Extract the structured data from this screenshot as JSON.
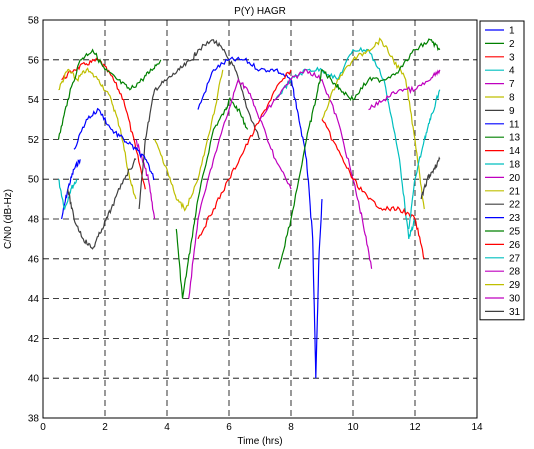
{
  "chart_data": {
    "type": "line",
    "title": "P(Y) HAGR",
    "xlabel": "Time (hrs)",
    "ylabel": "C/N0 (dB-Hz)",
    "xlim": [
      0,
      14
    ],
    "ylim": [
      38,
      58
    ],
    "xticks": [
      0,
      2,
      4,
      6,
      8,
      10,
      12,
      14
    ],
    "yticks": [
      38,
      40,
      42,
      44,
      46,
      48,
      50,
      52,
      54,
      56,
      58
    ],
    "grid": true,
    "legend_position": "outside-right",
    "series": [
      {
        "name": "1",
        "color": "#0000ff",
        "x": [
          0.6,
          0.8,
          1.0,
          1.2
        ],
        "y": [
          48.0,
          49.5,
          50.5,
          51.0
        ]
      },
      {
        "name": "2",
        "color": "#008000",
        "x": [
          4.3,
          4.5,
          4.8,
          5.0,
          5.5,
          5.9,
          6.0,
          6.3,
          6.6
        ],
        "y": [
          47.5,
          44.0,
          47.0,
          49.0,
          52.5,
          53.5,
          54.0,
          53.5,
          52.5
        ]
      },
      {
        "name": "3",
        "color": "#ff0000",
        "x": [
          0.6,
          1.0,
          1.4,
          1.8,
          2.2,
          2.6,
          3.0,
          3.3
        ],
        "y": [
          55.0,
          55.5,
          55.8,
          56.0,
          55.2,
          54.0,
          51.5,
          49.5
        ]
      },
      {
        "name": "4",
        "color": "#00bfbf",
        "x": [
          0.5,
          0.7,
          0.9,
          1.1
        ],
        "y": [
          50.0,
          48.5,
          49.5,
          50.0
        ]
      },
      {
        "name": "7",
        "color": "#bf00bf",
        "x": [
          3.0,
          3.2,
          3.4,
          3.6
        ],
        "y": [
          52.0,
          51.0,
          50.0,
          48.0
        ]
      },
      {
        "name": "8",
        "color": "#bfbf00",
        "x": [
          0.5,
          0.8,
          1.1,
          1.4,
          1.8,
          2.2,
          2.5,
          2.8,
          3.0
        ],
        "y": [
          54.5,
          55.5,
          55.0,
          55.5,
          55.0,
          54.0,
          52.5,
          50.0,
          49.0
        ]
      },
      {
        "name": "9",
        "color": "#404040",
        "x": [
          3.1,
          3.3,
          3.6,
          4.0,
          4.4,
          4.8,
          5.0,
          5.5,
          5.8,
          6.2,
          6.6,
          7.0
        ],
        "y": [
          48.5,
          52.0,
          54.5,
          55.0,
          55.5,
          56.0,
          56.5,
          57.0,
          56.5,
          55.5,
          53.5,
          52.0
        ]
      },
      {
        "name": "11",
        "color": "#0000ff",
        "x": [
          5.0,
          5.5,
          6.0,
          6.5,
          7.0,
          7.5,
          8.0,
          8.2,
          8.5,
          8.7,
          8.8,
          8.9,
          9.0
        ],
        "y": [
          53.5,
          55.5,
          56.0,
          56.0,
          55.5,
          55.5,
          55.0,
          53.5,
          51.0,
          47.0,
          40.0,
          46.0,
          49.0
        ]
      },
      {
        "name": "13",
        "color": "#008000",
        "x": [
          0.5,
          0.8,
          1.2,
          1.6,
          2.0,
          2.4,
          2.8,
          3.2,
          3.5,
          3.8
        ],
        "y": [
          52.0,
          54.0,
          56.0,
          56.5,
          55.5,
          55.0,
          54.5,
          55.0,
          55.5,
          56.0
        ]
      },
      {
        "name": "14",
        "color": "#ff0000",
        "x": [
          5.0,
          5.5,
          6.0,
          6.5,
          7.0,
          7.5,
          8.0
        ],
        "y": [
          47.0,
          48.5,
          50.0,
          51.5,
          53.0,
          54.5,
          55.5
        ]
      },
      {
        "name": "18",
        "color": "#00bfbf",
        "x": [
          7.5,
          8.0,
          8.5,
          9.0,
          9.5,
          10.0,
          10.5,
          11.0,
          11.5,
          11.8,
          12.0
        ],
        "y": [
          54.0,
          55.0,
          55.5,
          55.5,
          55.0,
          56.5,
          56.5,
          55.0,
          51.0,
          47.0,
          48.0
        ]
      },
      {
        "name": "20",
        "color": "#bf00bf",
        "x": [
          7.0,
          7.5,
          8.0,
          8.5,
          9.0,
          9.5,
          10.0,
          10.3,
          10.6
        ],
        "y": [
          53.0,
          54.0,
          55.0,
          55.5,
          55.0,
          53.0,
          50.0,
          48.0,
          45.5
        ]
      },
      {
        "name": "21",
        "color": "#bfbf00",
        "x": [
          9.0,
          9.5,
          10.0,
          10.5,
          10.9,
          11.3,
          11.7,
          12.0,
          12.3
        ],
        "y": [
          53.0,
          55.0,
          56.0,
          56.5,
          57.0,
          56.0,
          55.0,
          52.0,
          48.5
        ]
      },
      {
        "name": "22",
        "color": "#404040",
        "x": [
          0.8,
          1.0,
          1.3,
          1.6,
          1.9,
          2.2,
          2.6,
          3.0
        ],
        "y": [
          49.5,
          48.0,
          47.0,
          46.5,
          47.5,
          48.5,
          50.0,
          51.0
        ]
      },
      {
        "name": "23",
        "color": "#0000ff",
        "x": [
          1.0,
          1.4,
          1.8,
          2.2,
          2.6,
          3.0,
          3.3,
          3.6
        ],
        "y": [
          51.5,
          53.0,
          53.5,
          52.5,
          52.0,
          51.5,
          51.0,
          50.0
        ]
      },
      {
        "name": "25",
        "color": "#008000",
        "x": [
          7.6,
          8.0,
          8.5,
          8.8,
          9.0,
          9.3,
          9.6,
          10.0,
          10.5,
          11.0,
          11.5,
          12.0,
          12.5,
          12.8
        ],
        "y": [
          45.5,
          48.0,
          52.0,
          54.0,
          55.5,
          55.0,
          54.5,
          54.0,
          55.0,
          55.0,
          55.5,
          56.5,
          57.0,
          56.5
        ]
      },
      {
        "name": "26",
        "color": "#ff0000",
        "x": [
          9.0,
          9.5,
          10.0,
          10.5,
          11.0,
          11.5,
          12.0,
          12.3
        ],
        "y": [
          53.0,
          51.5,
          50.0,
          49.0,
          48.5,
          48.5,
          48.0,
          46.0
        ]
      },
      {
        "name": "27",
        "color": "#00bfbf",
        "x": [
          11.8,
          12.0,
          12.3,
          12.5,
          12.8
        ],
        "y": [
          47.5,
          50.0,
          52.0,
          53.0,
          54.5
        ]
      },
      {
        "name": "28",
        "color": "#bf00bf",
        "x": [
          4.7,
          5.0,
          5.5,
          6.0,
          6.3,
          6.6,
          7.0,
          7.5,
          8.0
        ],
        "y": [
          44.0,
          48.0,
          51.0,
          53.5,
          55.0,
          54.5,
          53.0,
          51.0,
          49.5
        ]
      },
      {
        "name": "29",
        "color": "#bfbf00",
        "x": [
          3.6,
          4.0,
          4.3,
          4.6,
          5.0,
          5.4,
          5.8
        ],
        "y": [
          52.0,
          50.5,
          49.0,
          48.5,
          50.0,
          52.5,
          55.5
        ]
      },
      {
        "name": "30",
        "color": "#bf00bf",
        "x": [
          10.5,
          11.0,
          11.5,
          12.0,
          12.5,
          12.8
        ],
        "y": [
          53.5,
          54.0,
          54.5,
          54.5,
          55.0,
          55.5
        ]
      },
      {
        "name": "31",
        "color": "#404040",
        "x": [
          12.2,
          12.4,
          12.6,
          12.8
        ],
        "y": [
          49.0,
          50.0,
          50.5,
          51.0
        ]
      }
    ]
  }
}
